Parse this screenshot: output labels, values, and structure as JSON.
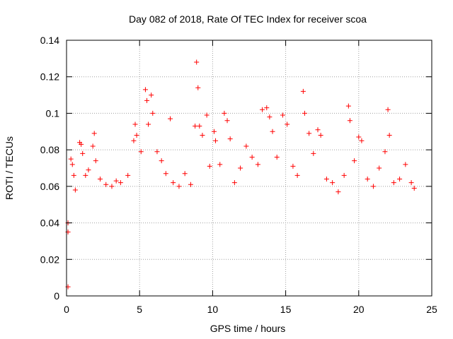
{
  "chart_data": {
    "type": "scatter",
    "title": "Day 082 of 2018, Rate Of TEC Index for receiver scoa",
    "xlabel": "GPS time / hours",
    "ylabel": "ROTI / TECUs",
    "xlim": [
      0,
      25
    ],
    "ylim": [
      0,
      0.14
    ],
    "xticks": [
      0,
      5,
      10,
      15,
      20,
      25
    ],
    "xtick_labels": [
      "0",
      "5",
      "10",
      "15",
      "20",
      "25"
    ],
    "yticks": [
      0,
      0.02,
      0.04,
      0.06,
      0.08,
      0.1,
      0.12,
      0.14
    ],
    "ytick_labels": [
      "0",
      "0.02",
      "0.04",
      "0.06",
      "0.08",
      "0.1",
      "0.12",
      "0.14"
    ],
    "grid": true,
    "marker": "+",
    "color": "#ff0000",
    "series": [
      {
        "values": [
          [
            0.1,
            0.005
          ],
          [
            0.1,
            0.035
          ],
          [
            0.1,
            0.04
          ],
          [
            0.3,
            0.075
          ],
          [
            0.4,
            0.072
          ],
          [
            0.5,
            0.066
          ],
          [
            0.6,
            0.058
          ],
          [
            0.9,
            0.084
          ],
          [
            1.0,
            0.083
          ],
          [
            1.1,
            0.078
          ],
          [
            1.3,
            0.066
          ],
          [
            1.5,
            0.069
          ],
          [
            1.8,
            0.082
          ],
          [
            1.9,
            0.089
          ],
          [
            2.0,
            0.074
          ],
          [
            2.3,
            0.064
          ],
          [
            2.7,
            0.061
          ],
          [
            3.1,
            0.06
          ],
          [
            3.4,
            0.063
          ],
          [
            3.7,
            0.062
          ],
          [
            4.2,
            0.066
          ],
          [
            4.6,
            0.085
          ],
          [
            4.7,
            0.094
          ],
          [
            4.8,
            0.088
          ],
          [
            5.1,
            0.079
          ],
          [
            5.4,
            0.113
          ],
          [
            5.5,
            0.107
          ],
          [
            5.6,
            0.094
          ],
          [
            5.8,
            0.11
          ],
          [
            5.9,
            0.1
          ],
          [
            6.2,
            0.079
          ],
          [
            6.5,
            0.074
          ],
          [
            6.8,
            0.067
          ],
          [
            7.1,
            0.097
          ],
          [
            7.3,
            0.062
          ],
          [
            7.7,
            0.06
          ],
          [
            8.1,
            0.067
          ],
          [
            8.5,
            0.061
          ],
          [
            8.8,
            0.093
          ],
          [
            8.9,
            0.128
          ],
          [
            9.0,
            0.114
          ],
          [
            9.1,
            0.093
          ],
          [
            9.3,
            0.088
          ],
          [
            9.6,
            0.099
          ],
          [
            9.8,
            0.071
          ],
          [
            10.1,
            0.09
          ],
          [
            10.2,
            0.085
          ],
          [
            10.5,
            0.072
          ],
          [
            10.8,
            0.1
          ],
          [
            11.0,
            0.096
          ],
          [
            11.2,
            0.086
          ],
          [
            11.5,
            0.062
          ],
          [
            11.9,
            0.07
          ],
          [
            12.3,
            0.082
          ],
          [
            12.7,
            0.076
          ],
          [
            13.1,
            0.072
          ],
          [
            13.4,
            0.102
          ],
          [
            13.7,
            0.103
          ],
          [
            13.9,
            0.098
          ],
          [
            14.1,
            0.09
          ],
          [
            14.4,
            0.076
          ],
          [
            14.8,
            0.099
          ],
          [
            15.1,
            0.094
          ],
          [
            15.5,
            0.071
          ],
          [
            15.8,
            0.066
          ],
          [
            16.2,
            0.112
          ],
          [
            16.3,
            0.1
          ],
          [
            16.6,
            0.089
          ],
          [
            16.9,
            0.078
          ],
          [
            17.2,
            0.091
          ],
          [
            17.4,
            0.088
          ],
          [
            17.8,
            0.064
          ],
          [
            18.2,
            0.062
          ],
          [
            18.6,
            0.057
          ],
          [
            19.0,
            0.066
          ],
          [
            19.3,
            0.104
          ],
          [
            19.4,
            0.096
          ],
          [
            19.7,
            0.074
          ],
          [
            20.0,
            0.087
          ],
          [
            20.2,
            0.085
          ],
          [
            20.6,
            0.064
          ],
          [
            21.0,
            0.06
          ],
          [
            21.4,
            0.07
          ],
          [
            21.8,
            0.079
          ],
          [
            22.0,
            0.102
          ],
          [
            22.1,
            0.088
          ],
          [
            22.4,
            0.062
          ],
          [
            22.8,
            0.064
          ],
          [
            23.2,
            0.072
          ],
          [
            23.6,
            0.062
          ],
          [
            23.8,
            0.059
          ]
        ]
      }
    ]
  }
}
